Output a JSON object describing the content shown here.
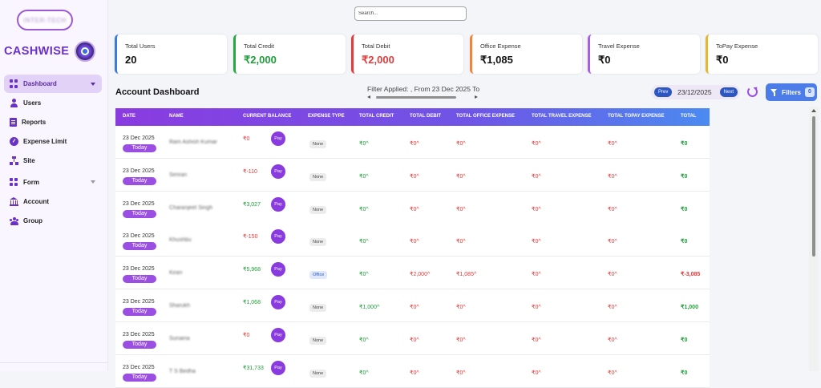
{
  "sidebar": {
    "top_pill": "INTER-TECH",
    "brand": "CASHWISE",
    "items": [
      {
        "label": "Dashboard",
        "icon": "grid-icon"
      },
      {
        "label": "Users",
        "icon": "user-icon"
      },
      {
        "label": "Reports",
        "icon": "report-icon"
      },
      {
        "label": "Expense Limit",
        "icon": "gauge-icon"
      },
      {
        "label": "Site",
        "icon": "sitemap-icon"
      },
      {
        "label": "Form",
        "icon": "grid-icon"
      },
      {
        "label": "Account",
        "icon": "bank-icon"
      },
      {
        "label": "Group",
        "icon": "group-icon"
      }
    ]
  },
  "search": {
    "placeholder": "Search..."
  },
  "cards": [
    {
      "label": "Total Users",
      "value": "20",
      "color": "#3b7ae0"
    },
    {
      "label": "Total Credit",
      "value": "₹2,000",
      "color": "#27a845",
      "value_color": "#1f9e3a"
    },
    {
      "label": "Total Debit",
      "value": "₹2,000",
      "color": "#e23b3b",
      "value_color": "#e23b3b"
    },
    {
      "label": "Office Expense",
      "value": "₹1,085",
      "color": "#f0843c"
    },
    {
      "label": "Travel Expense",
      "value": "₹0",
      "color": "#a55ee8"
    },
    {
      "label": "ToPay Expense",
      "value": "₹0",
      "color": "#e8b62c"
    }
  ],
  "dashboard": {
    "title": "Account Dashboard",
    "filter_text": "Filter Applied: , From 23 Dec 2025 To",
    "prev_label": "Prev",
    "next_label": "Next",
    "date": "23/12/2025",
    "filters_label": "Filters",
    "filters_count": "0"
  },
  "table": {
    "headers": [
      "Date",
      "Name",
      "Current Balance",
      "Expense Type",
      "Total Credit",
      "Total Debit",
      "Total Office Expense",
      "Total Travel Expense",
      "Total Topay Expense",
      "Total"
    ],
    "pay_label": "Pay",
    "today_label": "Today",
    "rows": [
      {
        "date": "23 Dec 2025",
        "name": "Ram Ashish Kumar",
        "balance": "₹0",
        "bal_color": "red",
        "type": "None",
        "credit": "₹0^",
        "debit": "₹0^",
        "office": "₹0^",
        "travel": "₹0^",
        "topay": "₹0^",
        "total": "₹0",
        "total_color": "green"
      },
      {
        "date": "23 Dec 2025",
        "name": "Simran",
        "balance": "₹-110",
        "bal_color": "red",
        "type": "None",
        "credit": "₹0^",
        "debit": "₹0^",
        "office": "₹0^",
        "travel": "₹0^",
        "topay": "₹0^",
        "total": "₹0",
        "total_color": "green"
      },
      {
        "date": "23 Dec 2025",
        "name": "Charanjeet Singh",
        "balance": "₹3,027",
        "bal_color": "green",
        "type": "None",
        "credit": "₹0^",
        "debit": "₹0^",
        "office": "₹0^",
        "travel": "₹0^",
        "topay": "₹0^",
        "total": "₹0",
        "total_color": "green"
      },
      {
        "date": "23 Dec 2025",
        "name": "Khushbu",
        "balance": "₹-150",
        "bal_color": "red",
        "type": "None",
        "credit": "₹0^",
        "debit": "₹0^",
        "office": "₹0^",
        "travel": "₹0^",
        "topay": "₹0^",
        "total": "₹0",
        "total_color": "green"
      },
      {
        "date": "23 Dec 2025",
        "name": "Kiran",
        "balance": "₹5,968",
        "bal_color": "green",
        "type": "Office",
        "credit": "₹0^",
        "debit": "₹2,000^",
        "office": "₹1,085^",
        "travel": "₹0^",
        "topay": "₹0^",
        "total": "₹-3,085",
        "total_color": "red"
      },
      {
        "date": "23 Dec 2025",
        "name": "Sharukh",
        "balance": "₹1,068",
        "bal_color": "green",
        "type": "None",
        "credit": "₹1,000^",
        "debit": "₹0^",
        "office": "₹0^",
        "travel": "₹0^",
        "topay": "₹0^",
        "total": "₹1,000",
        "total_color": "green"
      },
      {
        "date": "23 Dec 2025",
        "name": "Sunaina",
        "balance": "₹0",
        "bal_color": "red",
        "type": "None",
        "credit": "₹0^",
        "debit": "₹0^",
        "office": "₹0^",
        "travel": "₹0^",
        "topay": "₹0^",
        "total": "₹0",
        "total_color": "green"
      },
      {
        "date": "23 Dec 2025",
        "name": "T S Bedha",
        "balance": "₹31,733",
        "bal_color": "green",
        "type": "None",
        "credit": "₹0^",
        "debit": "₹0^",
        "office": "₹0^",
        "travel": "₹0^",
        "topay": "₹0^",
        "total": "₹0",
        "total_color": "green"
      }
    ]
  }
}
